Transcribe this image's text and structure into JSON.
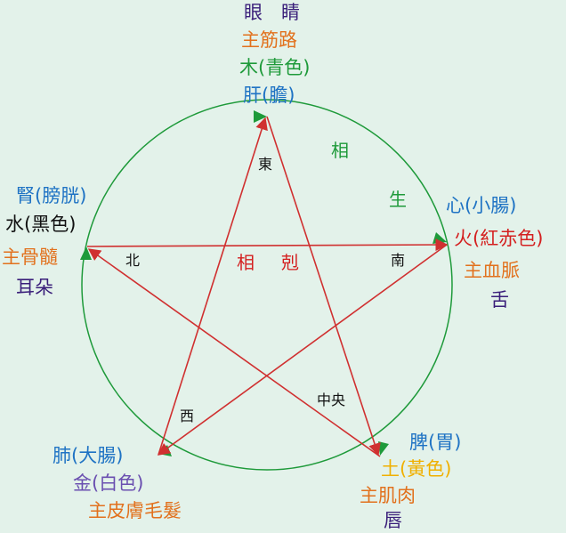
{
  "colors": {
    "background": "#e3f2ea",
    "cycle_green": "#1e9a3a",
    "control_red": "#d03030"
  },
  "wood": {
    "organ": "眼　睛",
    "function": "主筋路",
    "element": "木(青色)",
    "zang": "肝(膽)"
  },
  "fire": {
    "zang": "心(小腸)",
    "element": "火(紅赤色)",
    "function": "主血脈",
    "organ": "舌"
  },
  "earth": {
    "zang": "脾(胃)",
    "element": "土(黃色)",
    "function": "主肌肉",
    "organ": "唇"
  },
  "metal": {
    "zang": "肺(大腸)",
    "element": "金(白色)",
    "function": "主皮膚毛髮"
  },
  "water": {
    "zang": "腎(膀胱)",
    "element": "水(黑色)",
    "function": "主骨髓",
    "organ": "耳朵"
  },
  "directions": {
    "east": "東",
    "south": "南",
    "center": "中央",
    "west": "西",
    "north": "北"
  },
  "generating": {
    "char1": "相",
    "char2": "生"
  },
  "controlling": {
    "char1": "相",
    "char2": "剋"
  }
}
